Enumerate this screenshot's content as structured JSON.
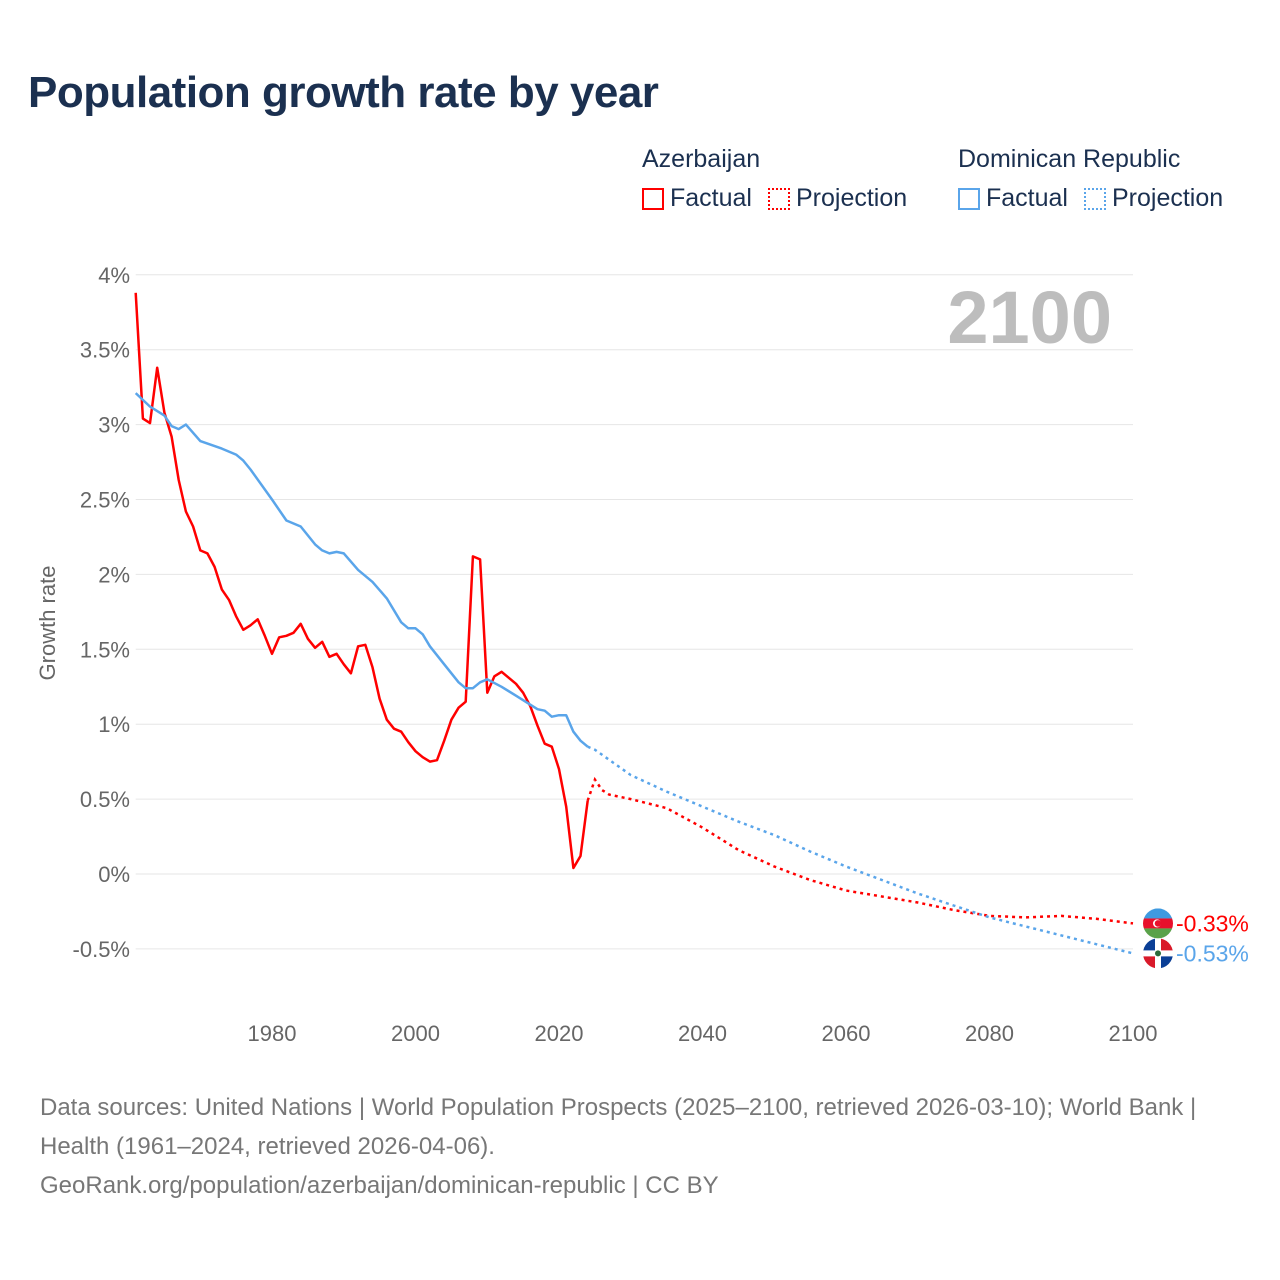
{
  "title": "Population growth rate by year",
  "legend": [
    {
      "country": "Azerbaijan",
      "factual": "Factual",
      "projection": "Projection",
      "color": "#ff0000"
    },
    {
      "country": "Dominican Republic",
      "factual": "Factual",
      "projection": "Projection",
      "color": "#5aa5ea"
    }
  ],
  "year_label": "2100",
  "footer": {
    "sources": "Data sources: United Nations | World Population Prospects (2025–2100, retrieved 2026-03-10); World Bank | Health (1961–2024, retrieved 2026-04-06).",
    "url": "GeoRank.org/population/azerbaijan/dominican-republic | CC BY"
  },
  "chart_data": {
    "type": "line",
    "title": "Population growth rate by year",
    "xlabel": "",
    "ylabel": "Growth rate",
    "xlim": [
      1961,
      2100
    ],
    "ylim": [
      -0.8,
      4
    ],
    "x_ticks": [
      1980,
      2000,
      2020,
      2040,
      2060,
      2080,
      2100
    ],
    "y_ticks": [
      {
        "v": 4,
        "label": "4%"
      },
      {
        "v": 3.5,
        "label": "3.5%"
      },
      {
        "v": 3,
        "label": "3%"
      },
      {
        "v": 2.5,
        "label": "2.5%"
      },
      {
        "v": 2,
        "label": "2%"
      },
      {
        "v": 1.5,
        "label": "1.5%"
      },
      {
        "v": 1,
        "label": "1%"
      },
      {
        "v": 0.5,
        "label": "0.5%"
      },
      {
        "v": 0,
        "label": "0%"
      },
      {
        "v": -0.5,
        "label": "-0.5%"
      }
    ],
    "grid": true,
    "legend_position": "top-right",
    "series": [
      {
        "name": "Azerbaijan",
        "color": "#ff0000",
        "end_label": "-0.33%",
        "factual": [
          [
            1961,
            3.88
          ],
          [
            1962,
            3.04
          ],
          [
            1963,
            3.01
          ],
          [
            1964,
            3.38
          ],
          [
            1965,
            3.08
          ],
          [
            1966,
            2.92
          ],
          [
            1967,
            2.63
          ],
          [
            1968,
            2.42
          ],
          [
            1969,
            2.32
          ],
          [
            1970,
            2.16
          ],
          [
            1971,
            2.14
          ],
          [
            1972,
            2.05
          ],
          [
            1973,
            1.9
          ],
          [
            1974,
            1.83
          ],
          [
            1975,
            1.72
          ],
          [
            1976,
            1.63
          ],
          [
            1977,
            1.66
          ],
          [
            1978,
            1.7
          ],
          [
            1979,
            1.59
          ],
          [
            1980,
            1.47
          ],
          [
            1981,
            1.58
          ],
          [
            1982,
            1.59
          ],
          [
            1983,
            1.61
          ],
          [
            1984,
            1.67
          ],
          [
            1985,
            1.57
          ],
          [
            1986,
            1.51
          ],
          [
            1987,
            1.55
          ],
          [
            1988,
            1.45
          ],
          [
            1989,
            1.47
          ],
          [
            1990,
            1.4
          ],
          [
            1991,
            1.34
          ],
          [
            1992,
            1.52
          ],
          [
            1993,
            1.53
          ],
          [
            1994,
            1.38
          ],
          [
            1995,
            1.17
          ],
          [
            1996,
            1.03
          ],
          [
            1997,
            0.97
          ],
          [
            1998,
            0.95
          ],
          [
            1999,
            0.88
          ],
          [
            2000,
            0.82
          ],
          [
            2001,
            0.78
          ],
          [
            2002,
            0.75
          ],
          [
            2003,
            0.76
          ],
          [
            2004,
            0.89
          ],
          [
            2005,
            1.03
          ],
          [
            2006,
            1.11
          ],
          [
            2007,
            1.15
          ],
          [
            2008,
            2.12
          ],
          [
            2009,
            2.1
          ],
          [
            2010,
            1.21
          ],
          [
            2011,
            1.32
          ],
          [
            2012,
            1.35
          ],
          [
            2013,
            1.31
          ],
          [
            2014,
            1.27
          ],
          [
            2015,
            1.21
          ],
          [
            2016,
            1.12
          ],
          [
            2017,
            0.99
          ],
          [
            2018,
            0.87
          ],
          [
            2019,
            0.85
          ],
          [
            2020,
            0.7
          ],
          [
            2021,
            0.45
          ],
          [
            2022,
            0.04
          ],
          [
            2023,
            0.12
          ],
          [
            2024,
            0.49
          ]
        ],
        "projection": [
          [
            2025,
            0.63
          ],
          [
            2026,
            0.56
          ],
          [
            2027,
            0.53
          ],
          [
            2030,
            0.5
          ],
          [
            2035,
            0.44
          ],
          [
            2040,
            0.31
          ],
          [
            2045,
            0.16
          ],
          [
            2050,
            0.05
          ],
          [
            2055,
            -0.04
          ],
          [
            2060,
            -0.11
          ],
          [
            2065,
            -0.15
          ],
          [
            2070,
            -0.19
          ],
          [
            2075,
            -0.24
          ],
          [
            2080,
            -0.28
          ],
          [
            2085,
            -0.29
          ],
          [
            2090,
            -0.28
          ],
          [
            2095,
            -0.3
          ],
          [
            2100,
            -0.33
          ]
        ]
      },
      {
        "name": "Dominican Republic",
        "color": "#5aa5ea",
        "end_label": "-0.53%",
        "factual": [
          [
            1961,
            3.21
          ],
          [
            1963,
            3.12
          ],
          [
            1965,
            3.06
          ],
          [
            1966,
            2.99
          ],
          [
            1967,
            2.97
          ],
          [
            1968,
            3.0
          ],
          [
            1970,
            2.89
          ],
          [
            1973,
            2.84
          ],
          [
            1975,
            2.8
          ],
          [
            1976,
            2.76
          ],
          [
            1977,
            2.7
          ],
          [
            1980,
            2.5
          ],
          [
            1982,
            2.36
          ],
          [
            1984,
            2.32
          ],
          [
            1986,
            2.2
          ],
          [
            1987,
            2.16
          ],
          [
            1988,
            2.14
          ],
          [
            1989,
            2.15
          ],
          [
            1990,
            2.14
          ],
          [
            1992,
            2.03
          ],
          [
            1994,
            1.95
          ],
          [
            1996,
            1.84
          ],
          [
            1998,
            1.68
          ],
          [
            1999,
            1.64
          ],
          [
            2000,
            1.64
          ],
          [
            2001,
            1.6
          ],
          [
            2002,
            1.52
          ],
          [
            2004,
            1.4
          ],
          [
            2006,
            1.28
          ],
          [
            2007,
            1.24
          ],
          [
            2008,
            1.24
          ],
          [
            2009,
            1.28
          ],
          [
            2010,
            1.3
          ],
          [
            2012,
            1.25
          ],
          [
            2014,
            1.19
          ],
          [
            2016,
            1.13
          ],
          [
            2017,
            1.1
          ],
          [
            2018,
            1.09
          ],
          [
            2019,
            1.05
          ],
          [
            2020,
            1.06
          ],
          [
            2021,
            1.06
          ],
          [
            2022,
            0.95
          ],
          [
            2023,
            0.89
          ],
          [
            2024,
            0.85
          ]
        ],
        "projection": [
          [
            2025,
            0.83
          ],
          [
            2030,
            0.66
          ],
          [
            2035,
            0.55
          ],
          [
            2040,
            0.45
          ],
          [
            2045,
            0.35
          ],
          [
            2050,
            0.26
          ],
          [
            2055,
            0.15
          ],
          [
            2060,
            0.05
          ],
          [
            2065,
            -0.04
          ],
          [
            2070,
            -0.13
          ],
          [
            2075,
            -0.21
          ],
          [
            2080,
            -0.29
          ],
          [
            2085,
            -0.35
          ],
          [
            2090,
            -0.41
          ],
          [
            2095,
            -0.47
          ],
          [
            2100,
            -0.53
          ]
        ]
      }
    ]
  }
}
